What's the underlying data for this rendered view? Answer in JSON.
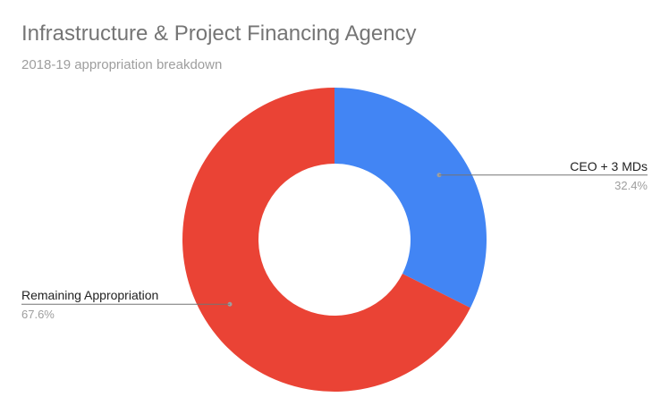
{
  "chart_data": {
    "type": "pie",
    "donut": true,
    "title": "Infrastructure & Project Financing Agency",
    "subtitle": "2018-19 appropriation breakdown",
    "legend": "none",
    "slices": [
      {
        "label": "CEO + 3 MDs",
        "value": 32.4,
        "value_label": "32.4%",
        "color": "#4285f4"
      },
      {
        "label": "Remaining Appropriation",
        "value": 67.6,
        "value_label": "67.6%",
        "color": "#ea4335"
      }
    ]
  }
}
